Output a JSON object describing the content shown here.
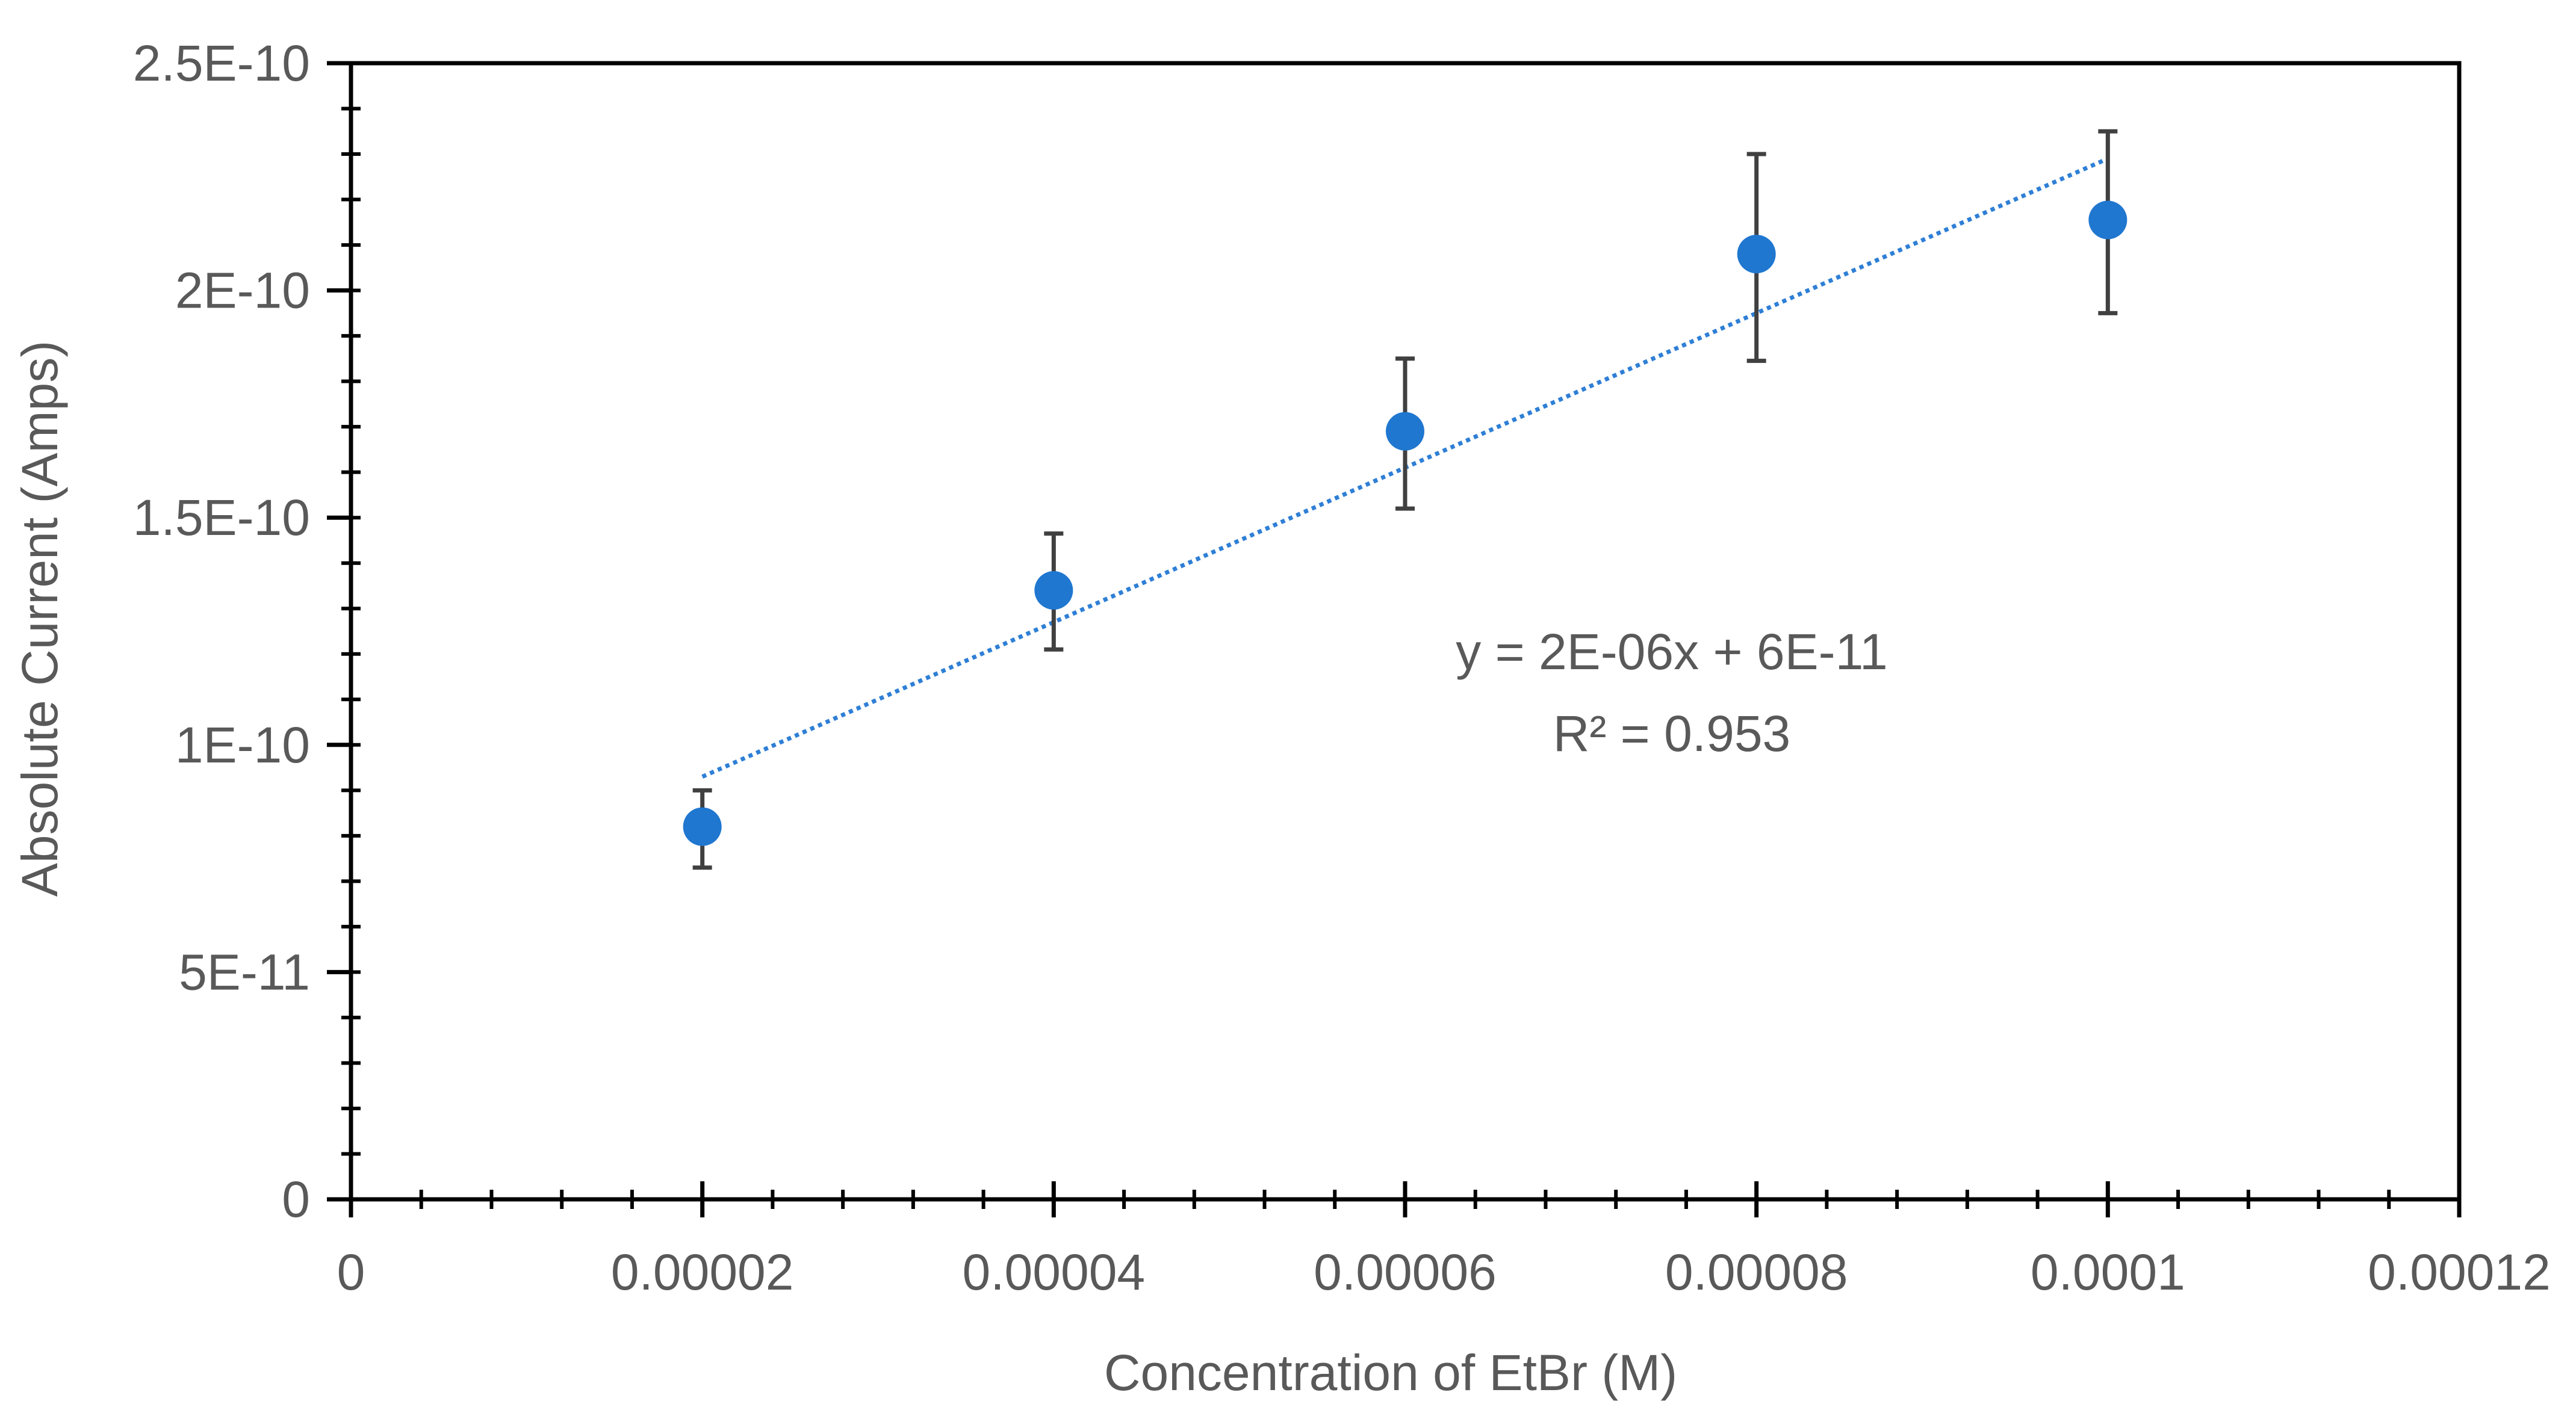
{
  "chart_data": {
    "type": "scatter",
    "title": "",
    "xlabel": "Concentration of EtBr (M)",
    "ylabel": "Absolute Current (Amps)",
    "xlim": [
      0,
      0.00012
    ],
    "ylim": [
      0,
      2.5e-10
    ],
    "x_ticks": [
      {
        "value": 0,
        "label": "0"
      },
      {
        "value": 2e-05,
        "label": "0.00002"
      },
      {
        "value": 4e-05,
        "label": "0.00004"
      },
      {
        "value": 6e-05,
        "label": "0.00006"
      },
      {
        "value": 8e-05,
        "label": "0.00008"
      },
      {
        "value": 0.0001,
        "label": "0.0001"
      },
      {
        "value": 0.00012,
        "label": "0.00012"
      }
    ],
    "y_ticks": [
      {
        "value": 0,
        "label": "0"
      },
      {
        "value": 5e-11,
        "label": "5E-11"
      },
      {
        "value": 1e-10,
        "label": "1E-10"
      },
      {
        "value": 1.5e-10,
        "label": "1.5E-10"
      },
      {
        "value": 2e-10,
        "label": "2E-10"
      },
      {
        "value": 2.5e-10,
        "label": "2.5E-10"
      }
    ],
    "x_minor_step": 4e-06,
    "y_minor_step": 1e-11,
    "grid": false,
    "legend": "none",
    "series": [
      {
        "marker": "circle",
        "color": "#1f77d0",
        "points": [
          {
            "x": 2e-05,
            "y": 8.2e-11,
            "err_low": 7.3e-11,
            "err_high": 9e-11
          },
          {
            "x": 4e-05,
            "y": 1.34e-10,
            "err_low": 1.21e-10,
            "err_high": 1.465e-10
          },
          {
            "x": 6e-05,
            "y": 1.69e-10,
            "err_low": 1.52e-10,
            "err_high": 1.85e-10
          },
          {
            "x": 8e-05,
            "y": 2.08e-10,
            "err_low": 1.845e-10,
            "err_high": 2.3e-10
          },
          {
            "x": 0.0001,
            "y": 2.155e-10,
            "err_low": 1.95e-10,
            "err_high": 2.35e-10
          }
        ]
      }
    ],
    "trendline": {
      "style": "dotted",
      "color": "#2e7fd6",
      "x_start": 2e-05,
      "y_start": 9.3e-11,
      "x_end": 0.0001,
      "y_end": 2.29e-10,
      "equation": "y = 2E-06x + 6E-11",
      "r_squared": "R² = 0.953"
    },
    "colors": {
      "axis": "#000000",
      "error_bar": "#404040",
      "text": "#595959"
    }
  }
}
